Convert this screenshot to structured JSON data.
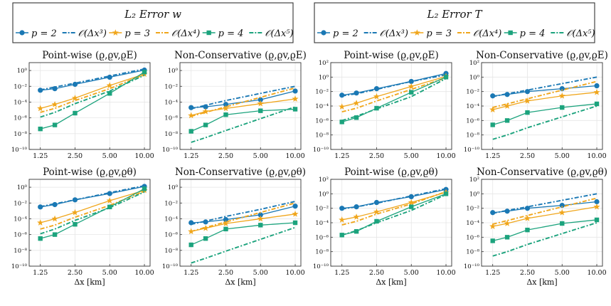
{
  "colors": {
    "p2": "#1a78b4",
    "p3": "#f0a61c",
    "p4": "#1ca37d",
    "grid": "#e6e6e6",
    "frame": "#333333"
  },
  "legends": [
    {
      "title": "L₂ Error  w",
      "entries": [
        "p = 2",
        "𝒪(Δx³)",
        "p = 3",
        "𝒪(Δx⁴)",
        "p = 4",
        "𝒪(Δx⁵)"
      ]
    },
    {
      "title": "L₂ Error  T",
      "entries": [
        "p = 2",
        "𝒪(Δx³)",
        "p = 3",
        "𝒪(Δx⁴)",
        "p = 4",
        "𝒪(Δx⁵)"
      ]
    }
  ],
  "chart_data": [
    {
      "type": "line",
      "title": "Point-wise (ϱ,ϱv,ϱE)",
      "xlabel": "",
      "quantity": "w",
      "x": [
        1.25,
        1.67,
        2.5,
        5,
        10
      ],
      "xticks": [
        "1.25",
        "2.50",
        "5.00",
        "10.00"
      ],
      "ylim_exp": [
        -10,
        1
      ],
      "series": [
        {
          "name": "p = 2",
          "log10": [
            -2.5,
            -2.3,
            -1.75,
            -0.85,
            0.05
          ]
        },
        {
          "name": "O(Δx³)",
          "log10": [
            -2.45,
            -2.1,
            -1.6,
            -0.7,
            0.2
          ],
          "dashed": true
        },
        {
          "name": "p = 3",
          "log10": [
            -4.8,
            -4.3,
            -3.5,
            -1.9,
            -0.45
          ]
        },
        {
          "name": "O(Δx⁴)",
          "log10": [
            -5.3,
            -4.8,
            -3.8,
            -2.3,
            -0.5
          ],
          "dashed": true
        },
        {
          "name": "p = 4",
          "log10": [
            -7.4,
            -6.9,
            -5.4,
            -2.9,
            -0.2
          ]
        },
        {
          "name": "O(Δx⁵)",
          "log10": [
            -5.9,
            -5.3,
            -4.2,
            -2.6,
            -0.6
          ],
          "dashed": true
        }
      ]
    },
    {
      "type": "line",
      "title": "Non-Conservative (ϱ,ϱv,ϱE)",
      "xlabel": "",
      "quantity": "w",
      "x": [
        1.25,
        1.67,
        2.5,
        5,
        10
      ],
      "xticks": [
        "1.25",
        "2.50",
        "5.00",
        "10.00"
      ],
      "ylim_exp": [
        -10,
        1
      ],
      "series": [
        {
          "name": "p = 2",
          "log10": [
            -4.7,
            -4.6,
            -4.3,
            -3.7,
            -2.6
          ]
        },
        {
          "name": "O(Δx³)",
          "log10": [
            -4.85,
            -4.4,
            -3.8,
            -2.9,
            -2.0
          ],
          "dashed": true
        },
        {
          "name": "p = 3",
          "log10": [
            -5.7,
            -5.2,
            -4.8,
            -4.2,
            -3.6
          ]
        },
        {
          "name": "O(Δx⁴)",
          "log10": [
            -5.8,
            -5.3,
            -4.6,
            -3.4,
            -2.2
          ],
          "dashed": true
        },
        {
          "name": "p = 4",
          "log10": [
            -7.7,
            -6.9,
            -5.6,
            -5.1,
            -4.9
          ]
        },
        {
          "name": "O(Δx⁵)",
          "log10": [
            -9.1,
            -8.5,
            -7.6,
            -6.1,
            -4.6
          ],
          "dashed": true
        }
      ]
    },
    {
      "type": "line",
      "title": "Point-wise (ϱ,ϱv,ϱE)",
      "xlabel": "",
      "quantity": "T",
      "x": [
        1.25,
        1.67,
        2.5,
        5,
        10
      ],
      "xticks": [
        "1.25",
        "2.50",
        "5.00",
        "10.00"
      ],
      "ylim_exp": [
        -10,
        2
      ],
      "series": [
        {
          "name": "p = 2",
          "log10": [
            -2.5,
            -2.2,
            -1.6,
            -0.6,
            0.5
          ]
        },
        {
          "name": "O(Δx³)",
          "log10": [
            -2.6,
            -2.3,
            -1.7,
            -0.6,
            0.3
          ],
          "dashed": true
        },
        {
          "name": "p = 3",
          "log10": [
            -4.1,
            -3.6,
            -2.7,
            -1.3,
            0.1
          ]
        },
        {
          "name": "O(Δx⁴)",
          "log10": [
            -4.8,
            -4.3,
            -3.3,
            -1.7,
            -0.1
          ],
          "dashed": true
        },
        {
          "name": "p = 4",
          "log10": [
            -6.2,
            -5.6,
            -4.3,
            -2.1,
            0.0
          ]
        },
        {
          "name": "O(Δx⁵)",
          "log10": [
            -6.0,
            -5.4,
            -4.4,
            -2.7,
            -0.2
          ],
          "dashed": true
        }
      ]
    },
    {
      "type": "line",
      "title": "Non-Conservative (ϱ,ϱv,ϱE)",
      "xlabel": "",
      "quantity": "T",
      "x": [
        1.25,
        1.67,
        2.5,
        5,
        10
      ],
      "xticks": [
        "1.25",
        "2.50",
        "5.00",
        "10.00"
      ],
      "ylim_exp": [
        -10,
        2
      ],
      "series": [
        {
          "name": "p = 2",
          "log10": [
            -2.6,
            -2.4,
            -2.0,
            -1.6,
            -1.2
          ]
        },
        {
          "name": "O(Δx³)",
          "log10": [
            -2.7,
            -2.3,
            -1.8,
            -0.9,
            0.0
          ],
          "dashed": true
        },
        {
          "name": "p = 3",
          "log10": [
            -4.5,
            -4.0,
            -3.3,
            -2.6,
            -2.1
          ]
        },
        {
          "name": "O(Δx⁴)",
          "log10": [
            -4.2,
            -3.7,
            -3.0,
            -1.8,
            -0.6
          ],
          "dashed": true
        },
        {
          "name": "p = 4",
          "log10": [
            -6.6,
            -6.0,
            -4.9,
            -4.2,
            -3.7
          ]
        },
        {
          "name": "O(Δx⁵)",
          "log10": [
            -8.6,
            -8.0,
            -7.0,
            -5.5,
            -4.0
          ],
          "dashed": true
        }
      ]
    },
    {
      "type": "line",
      "title": "Point-wise (ϱ,ϱv,ϱθ)",
      "xlabel": "Δx [km]",
      "quantity": "w",
      "x": [
        1.25,
        1.67,
        2.5,
        5,
        10
      ],
      "xticks": [
        "1.25",
        "2.50",
        "5.00",
        "10.00"
      ],
      "ylim_exp": [
        -10,
        1
      ],
      "series": [
        {
          "name": "p = 2",
          "log10": [
            -2.5,
            -2.2,
            -1.6,
            -0.8,
            0.1
          ]
        },
        {
          "name": "O(Δx³)",
          "log10": [
            -2.45,
            -2.1,
            -1.6,
            -0.7,
            0.2
          ],
          "dashed": true
        },
        {
          "name": "p = 3",
          "log10": [
            -4.5,
            -4.0,
            -3.2,
            -1.7,
            -0.4
          ]
        },
        {
          "name": "O(Δx⁴)",
          "log10": [
            -5.3,
            -4.8,
            -3.8,
            -2.3,
            -0.5
          ],
          "dashed": true
        },
        {
          "name": "p = 4",
          "log10": [
            -6.5,
            -6.0,
            -4.7,
            -2.5,
            -0.2
          ]
        },
        {
          "name": "O(Δx⁵)",
          "log10": [
            -5.9,
            -5.3,
            -4.2,
            -2.6,
            -0.6
          ],
          "dashed": true
        }
      ]
    },
    {
      "type": "line",
      "title": "Non-Conservative (ϱ,ϱv,ϱθ)",
      "xlabel": "Δx [km]",
      "quantity": "w",
      "x": [
        1.25,
        1.67,
        2.5,
        5,
        10
      ],
      "xticks": [
        "1.25",
        "2.50",
        "5.00",
        "10.00"
      ],
      "ylim_exp": [
        -10,
        1
      ],
      "series": [
        {
          "name": "p = 2",
          "log10": [
            -4.5,
            -4.4,
            -4.1,
            -3.5,
            -2.4
          ]
        },
        {
          "name": "O(Δx³)",
          "log10": [
            -4.7,
            -4.3,
            -3.7,
            -2.8,
            -1.8
          ],
          "dashed": true
        },
        {
          "name": "p = 3",
          "log10": [
            -5.6,
            -5.2,
            -4.6,
            -4.0,
            -3.4
          ]
        },
        {
          "name": "O(Δx⁴)",
          "log10": [
            -5.6,
            -5.1,
            -4.4,
            -3.2,
            -2.0
          ],
          "dashed": true
        },
        {
          "name": "p = 4",
          "log10": [
            -7.3,
            -6.5,
            -5.3,
            -4.8,
            -4.5
          ]
        },
        {
          "name": "O(Δx⁵)",
          "log10": [
            -9.6,
            -9.0,
            -8.1,
            -6.6,
            -5.1
          ],
          "dashed": true
        }
      ]
    },
    {
      "type": "line",
      "title": "Point-wise (ϱ,ϱv,ϱθ)",
      "xlabel": "Δx [km]",
      "quantity": "T",
      "x": [
        1.25,
        1.67,
        2.5,
        5,
        10
      ],
      "xticks": [
        "1.25",
        "2.50",
        "5.00",
        "10.00"
      ],
      "ylim_exp": [
        -10,
        2
      ],
      "series": [
        {
          "name": "p = 2",
          "log10": [
            -2.0,
            -1.8,
            -1.2,
            -0.4,
            0.6
          ]
        },
        {
          "name": "O(Δx³)",
          "log10": [
            -2.1,
            -1.8,
            -1.3,
            -0.3,
            0.7
          ],
          "dashed": true
        },
        {
          "name": "p = 3",
          "log10": [
            -3.6,
            -3.2,
            -2.5,
            -1.2,
            0.2
          ]
        },
        {
          "name": "O(Δx⁴)",
          "log10": [
            -4.3,
            -3.8,
            -2.8,
            -1.4,
            0.3
          ],
          "dashed": true
        },
        {
          "name": "p = 4",
          "log10": [
            -5.7,
            -5.2,
            -3.8,
            -1.8,
            0.0
          ]
        },
        {
          "name": "O(Δx⁵)",
          "log10": [
            -5.7,
            -5.1,
            -4.0,
            -2.3,
            -0.1
          ],
          "dashed": true
        }
      ]
    },
    {
      "type": "line",
      "title": "Non-Conservative (ϱ,ϱv,ϱθ)",
      "xlabel": "Δx [km]",
      "quantity": "T",
      "x": [
        1.25,
        1.67,
        2.5,
        5,
        10
      ],
      "xticks": [
        "1.25",
        "2.50",
        "5.00",
        "10.00"
      ],
      "ylim_exp": [
        -10,
        2
      ],
      "series": [
        {
          "name": "p = 2",
          "log10": [
            -2.6,
            -2.4,
            -2.0,
            -1.6,
            -1.1
          ]
        },
        {
          "name": "O(Δx³)",
          "log10": [
            -2.7,
            -2.3,
            -1.8,
            -0.9,
            0.0
          ],
          "dashed": true
        },
        {
          "name": "p = 3",
          "log10": [
            -4.5,
            -4.1,
            -3.4,
            -2.6,
            -1.8
          ]
        },
        {
          "name": "O(Δx⁴)",
          "log10": [
            -4.2,
            -3.7,
            -3.0,
            -1.8,
            -0.6
          ],
          "dashed": true
        },
        {
          "name": "p = 4",
          "log10": [
            -6.5,
            -6.0,
            -5.0,
            -4.1,
            -3.6
          ]
        },
        {
          "name": "O(Δx⁵)",
          "log10": [
            -8.6,
            -8.0,
            -7.0,
            -5.5,
            -4.0
          ],
          "dashed": true
        }
      ]
    }
  ]
}
